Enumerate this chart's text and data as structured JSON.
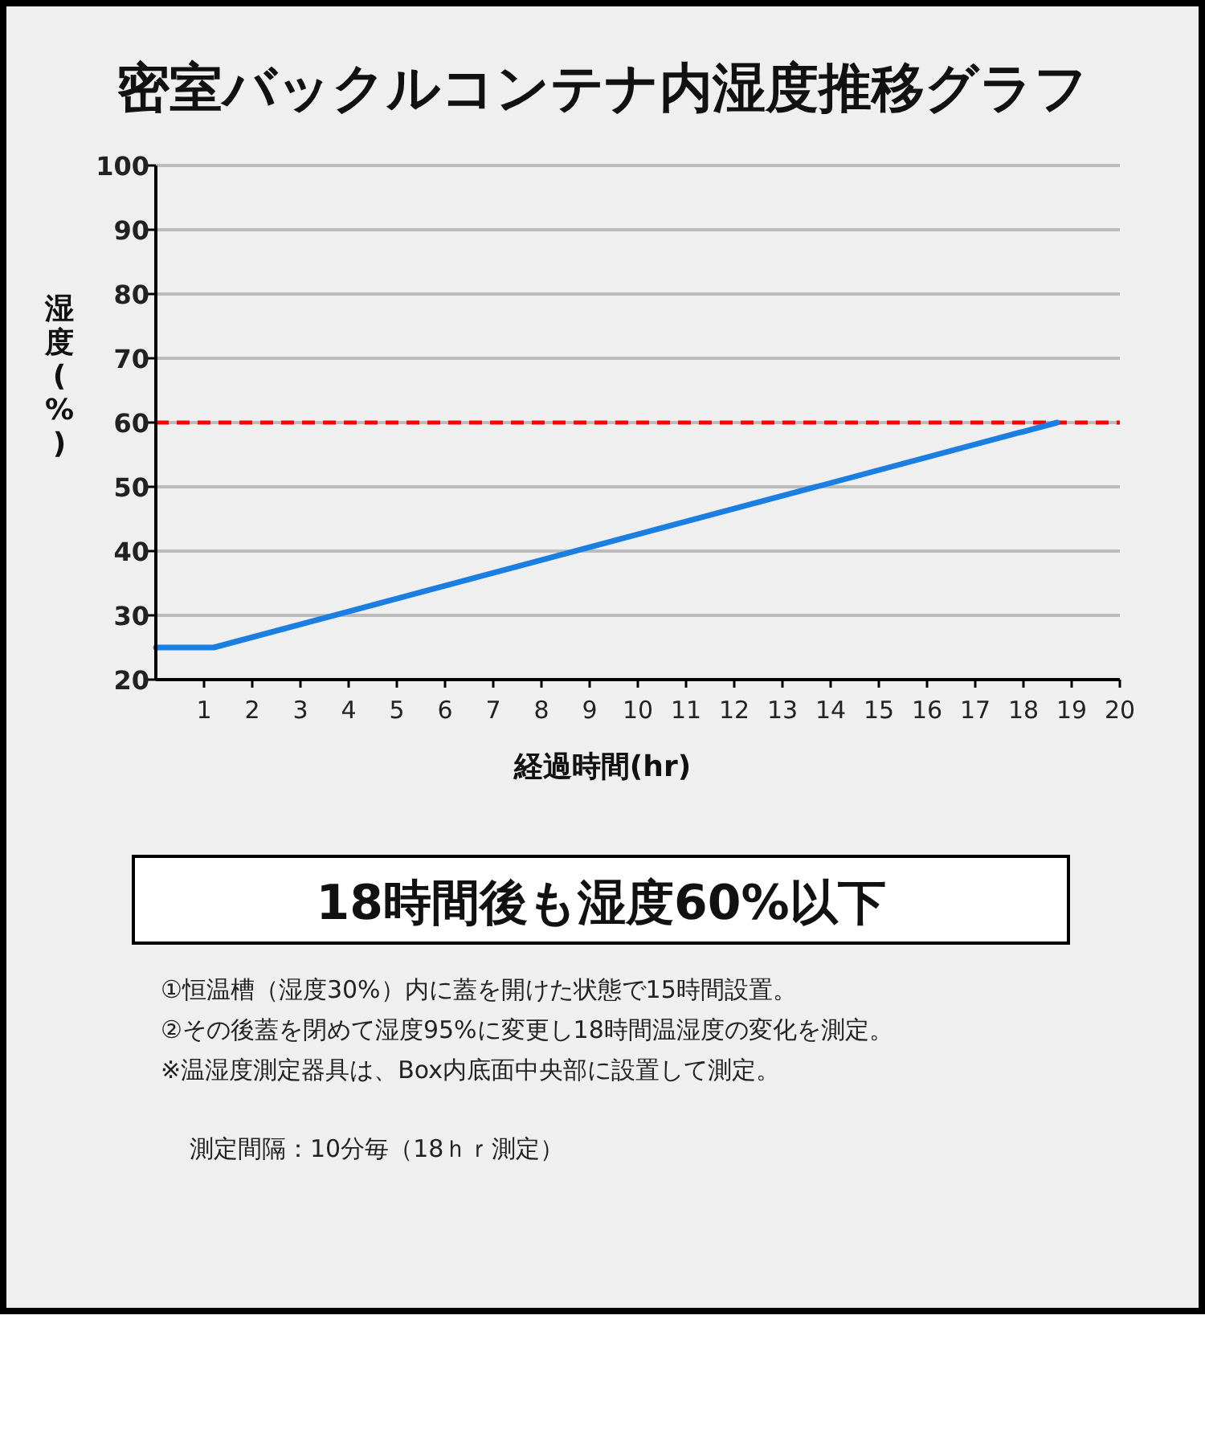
{
  "chart_data": {
    "type": "line",
    "title": "密室バックルコンテナ内湿度推移グラフ",
    "xlabel": "経過時間(hr)",
    "ylabel": "湿度(%)",
    "x": [
      0,
      1.2,
      18.7
    ],
    "series": [
      {
        "color": "#1a7fe0",
        "values": [
          25,
          25,
          60
        ]
      }
    ],
    "xlim": [
      0,
      20
    ],
    "xticks": [
      1,
      2,
      3,
      4,
      5,
      6,
      7,
      8,
      9,
      10,
      11,
      12,
      13,
      14,
      15,
      16,
      17,
      18,
      19,
      20
    ],
    "ylim": [
      20,
      100
    ],
    "yticks": [
      20,
      30,
      40,
      50,
      60,
      70,
      80,
      90,
      100
    ],
    "grid": "y",
    "ref_lines": [
      {
        "axis": "y",
        "value": 60,
        "color": "#ff0000",
        "line_style": "dashed"
      }
    ],
    "annotations": [
      "18時間後も湿度60%以下",
      "①恒温槽（湿度30%）内に蓋を開けた状態で15時間設置。",
      "②その後蓋を閉めて湿度95%に変更し18時間温湿度の変化を測定。",
      "※温湿度測定器具は、Box内底面中央部に設置して測定。",
      "測定間隔：10分毎（18ｈｒ測定）"
    ]
  }
}
